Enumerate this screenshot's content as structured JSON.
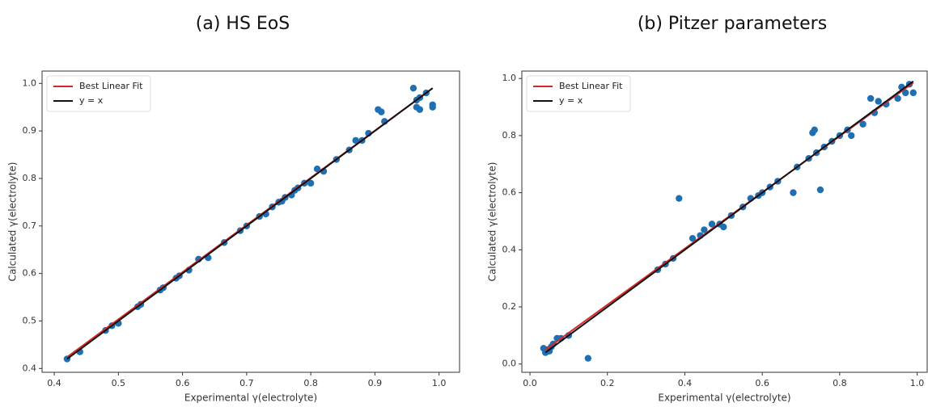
{
  "chart_data": [
    {
      "type": "scatter",
      "title": "(a)  HS EoS",
      "x_label": "Experimental γ(electrolyte)",
      "y_label": "Calculated γ(electrolyte)",
      "xlim": [
        0.381,
        1.032
      ],
      "ylim": [
        0.392,
        1.026
      ],
      "xticks": [
        0.4,
        0.5,
        0.6,
        0.7,
        0.8,
        0.9,
        {
          "value": 1,
          "label": "1.0"
        }
      ],
      "yticks": [
        0.4,
        0.5,
        0.6,
        0.7,
        0.8,
        0.9,
        {
          "value": 1,
          "label": "1.0"
        }
      ],
      "legend": "upper left",
      "points": {
        "color": "#1f6fb4",
        "x": [
          0.42,
          0.44,
          0.48,
          0.49,
          0.5,
          0.53,
          0.535,
          0.565,
          0.57,
          0.59,
          0.595,
          0.61,
          0.625,
          0.64,
          0.665,
          0.69,
          0.7,
          0.72,
          0.73,
          0.74,
          0.75,
          0.755,
          0.76,
          0.77,
          0.775,
          0.78,
          0.79,
          0.8,
          0.81,
          0.82,
          0.84,
          0.86,
          0.87,
          0.88,
          0.89,
          0.905,
          0.91,
          0.915,
          0.96,
          0.965,
          0.965,
          0.97,
          0.97,
          0.99,
          0.99,
          0.98
        ],
        "values": [
          0.42,
          0.435,
          0.48,
          0.49,
          0.495,
          0.53,
          0.535,
          0.565,
          0.57,
          0.59,
          0.595,
          0.607,
          0.63,
          0.633,
          0.665,
          0.69,
          0.7,
          0.72,
          0.725,
          0.74,
          0.75,
          0.752,
          0.76,
          0.765,
          0.775,
          0.78,
          0.79,
          0.79,
          0.82,
          0.815,
          0.84,
          0.86,
          0.88,
          0.88,
          0.895,
          0.945,
          0.94,
          0.92,
          0.99,
          0.965,
          0.95,
          0.945,
          0.97,
          0.955,
          0.95,
          0.98
        ]
      },
      "series": [
        {
          "name": "Best Linear Fit",
          "color": "#d62728",
          "x": [
            0.42,
            0.99
          ],
          "values": [
            0.424,
            0.99
          ]
        },
        {
          "name": "y = x",
          "color": "#111111",
          "x": [
            0.42,
            0.99
          ],
          "values": [
            0.42,
            0.99
          ]
        }
      ]
    },
    {
      "type": "scatter",
      "title": "(b)  Pitzer parameters",
      "x_label": "Experimental γ(electrolyte)",
      "y_label": "Calculated γ(electrolyte)",
      "xlim": [
        -0.021,
        1.026
      ],
      "ylim": [
        -0.029,
        1.026
      ],
      "xticks": [
        {
          "value": 0,
          "label": "0.0"
        },
        0.2,
        0.4,
        0.6,
        0.8,
        {
          "value": 1,
          "label": "1.0"
        }
      ],
      "yticks": [
        {
          "value": 0,
          "label": "0.0"
        },
        0.2,
        0.4,
        0.6,
        0.8,
        {
          "value": 1,
          "label": "1.0"
        }
      ],
      "legend": "upper left",
      "points": {
        "color": "#1f6fb4",
        "x": [
          0.035,
          0.04,
          0.045,
          0.05,
          0.055,
          0.06,
          0.07,
          0.08,
          0.1,
          0.15,
          0.33,
          0.35,
          0.37,
          0.385,
          0.42,
          0.44,
          0.45,
          0.47,
          0.49,
          0.5,
          0.52,
          0.55,
          0.57,
          0.59,
          0.6,
          0.62,
          0.64,
          0.68,
          0.69,
          0.72,
          0.73,
          0.735,
          0.74,
          0.75,
          0.76,
          0.78,
          0.8,
          0.82,
          0.83,
          0.86,
          0.88,
          0.89,
          0.9,
          0.92,
          0.95,
          0.96,
          0.97,
          0.98,
          0.99
        ],
        "values": [
          0.055,
          0.04,
          0.05,
          0.045,
          0.06,
          0.07,
          0.09,
          0.09,
          0.1,
          0.02,
          0.33,
          0.35,
          0.37,
          0.58,
          0.44,
          0.45,
          0.47,
          0.49,
          0.49,
          0.48,
          0.52,
          0.55,
          0.58,
          0.59,
          0.6,
          0.62,
          0.64,
          0.6,
          0.69,
          0.72,
          0.81,
          0.82,
          0.74,
          0.61,
          0.76,
          0.78,
          0.8,
          0.82,
          0.8,
          0.84,
          0.93,
          0.88,
          0.92,
          0.91,
          0.93,
          0.97,
          0.95,
          0.98,
          0.95
        ]
      },
      "series": [
        {
          "name": "Best Linear Fit",
          "color": "#d62728",
          "x": [
            0.04,
            0.99
          ],
          "values": [
            0.05,
            0.985
          ]
        },
        {
          "name": "y = x",
          "color": "#111111",
          "x": [
            0.04,
            0.99
          ],
          "values": [
            0.04,
            0.99
          ]
        }
      ]
    }
  ]
}
